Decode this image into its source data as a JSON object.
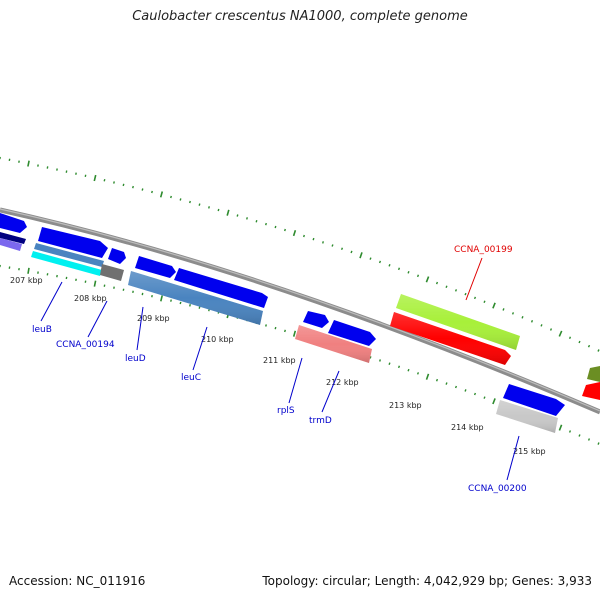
{
  "map": {
    "title": "Caulobacter crescentus NA1000, complete genome",
    "accession_text": "Accession: NC_011916",
    "summary_text": "Topology: circular; Length: 4,042,929 bp; Genes: 3,933",
    "scale_labels": [
      "207 kbp",
      "208 kbp",
      "209 kbp",
      "210 kbp",
      "211 kbp",
      "212 kbp",
      "213 kbp",
      "214 kbp",
      "215 kbp"
    ],
    "gene_labels": [
      {
        "name": "leuB",
        "color": "#0000cc"
      },
      {
        "name": "CCNA_00194",
        "color": "#0000cc"
      },
      {
        "name": "leuD",
        "color": "#0000cc"
      },
      {
        "name": "leuC",
        "color": "#0000cc"
      },
      {
        "name": "rplS",
        "color": "#0000cc"
      },
      {
        "name": "trmD",
        "color": "#0000cc"
      },
      {
        "name": "CCNA_00199",
        "color": "#e00000"
      },
      {
        "name": "CCNA_00200",
        "color": "#0000cc"
      }
    ],
    "colors": {
      "backbone": "#8c8c8c",
      "cds": "#0000ee",
      "gc_dots": "#2e8b2e",
      "lime": "#a8f03a",
      "red": "#ff0000",
      "steelblue": "#4a84c0",
      "cyan": "#00f0f0",
      "salmon": "#f08080",
      "silver": "#c8c8c8",
      "gray": "#707070"
    }
  }
}
